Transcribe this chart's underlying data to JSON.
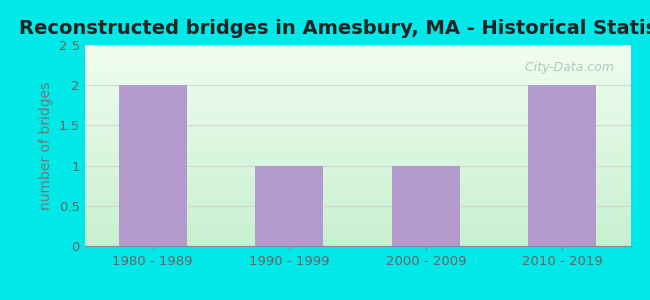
{
  "title": "Reconstructed bridges in Amesbury, MA - Historical Statistics",
  "categories": [
    "1980 - 1989",
    "1990 - 1999",
    "2000 - 2009",
    "2010 - 2019"
  ],
  "values": [
    2,
    1,
    1,
    2
  ],
  "bar_color": "#b399cc",
  "bar_edge_color": "#9b7db5",
  "ylabel": "number of bridges",
  "ylim": [
    0,
    2.5
  ],
  "yticks": [
    0,
    0.5,
    1,
    1.5,
    2,
    2.5
  ],
  "background_outer": "#00e8e8",
  "background_inner_bottom": "#c8f0d0",
  "background_inner_top": "#f0fdf0",
  "title_fontsize": 14,
  "ylabel_fontsize": 10,
  "tick_fontsize": 9.5,
  "watermark_text": " City-Data.com",
  "watermark_color": "#b0bfb8",
  "grid_color": "#d0d8d0",
  "ylabel_color": "#777777",
  "tick_color": "#666666"
}
